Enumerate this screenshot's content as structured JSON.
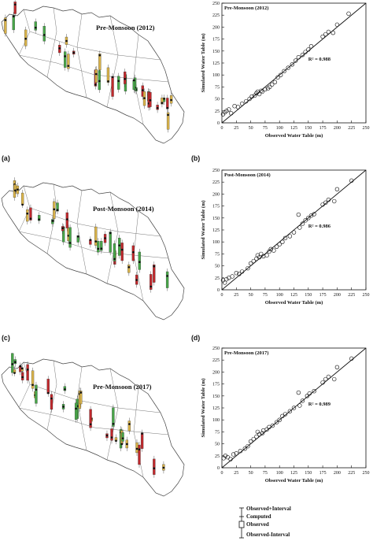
{
  "figure": {
    "panel_labels": [
      "(a)",
      "(b)",
      "(c)",
      "(d)"
    ],
    "maps": [
      {
        "title": "Pre-Monsoon (2012)"
      },
      {
        "title": "Post-Monsoon (2014)"
      },
      {
        "title": "Pre-Monsoon (2017)"
      }
    ],
    "legend": {
      "items": [
        "Observed+Interval",
        "Computed",
        "Observed",
        "Observed-Interval"
      ]
    },
    "colors": {
      "bar_red": "#c0282c",
      "bar_yellow": "#d9b34a",
      "bar_green": "#47a548",
      "fit_line": "#111111",
      "marker_stroke": "#111111"
    }
  },
  "chart_data": [
    {
      "type": "scatter",
      "title": "Pre-Monsoon (2012)",
      "xlabel": "Observed Water Table (m)",
      "ylabel": "Simulated Water Table (m)",
      "xlim": [
        0,
        250
      ],
      "ylim": [
        0,
        250
      ],
      "xticks": [
        0,
        25,
        50,
        75,
        100,
        125,
        150,
        175,
        200,
        225,
        250
      ],
      "yticks": [
        0,
        25,
        50,
        75,
        100,
        125,
        150,
        175,
        200,
        225,
        250
      ],
      "annotation": "R² = 0.988",
      "reference_line": "1:1",
      "grid": false,
      "x": [
        2,
        5,
        8,
        12,
        16,
        22,
        28,
        35,
        42,
        48,
        52,
        57,
        60,
        62,
        65,
        68,
        70,
        75,
        80,
        83,
        87,
        92,
        97,
        102,
        108,
        115,
        122,
        128,
        133,
        140,
        145,
        150,
        155,
        175,
        180,
        185,
        193,
        200,
        220
      ],
      "y": [
        18,
        22,
        25,
        28,
        20,
        35,
        33,
        40,
        45,
        50,
        55,
        57,
        62,
        65,
        60,
        67,
        65,
        70,
        72,
        75,
        80,
        85,
        95,
        100,
        108,
        115,
        122,
        130,
        137,
        142,
        148,
        153,
        160,
        180,
        185,
        190,
        188,
        205,
        228
      ]
    },
    {
      "type": "scatter",
      "title": "Post-Monsoon (2014)",
      "xlabel": "Observed Water Table (m)",
      "ylabel": "Simulated Water Table (m)",
      "xlim": [
        0,
        250
      ],
      "ylim": [
        0,
        250
      ],
      "xticks": [
        0,
        25,
        50,
        75,
        100,
        125,
        150,
        175,
        200,
        225,
        250
      ],
      "yticks": [
        0,
        25,
        50,
        75,
        100,
        125,
        150,
        175,
        200,
        225,
        250
      ],
      "annotation": "R² = 0.986",
      "reference_line": "1:1",
      "grid": false,
      "x": [
        2,
        5,
        8,
        12,
        18,
        25,
        30,
        35,
        45,
        50,
        55,
        60,
        62,
        65,
        68,
        72,
        78,
        82,
        85,
        90,
        95,
        100,
        105,
        110,
        118,
        125,
        133,
        135,
        140,
        145,
        150,
        155,
        160,
        175,
        180,
        185,
        195,
        200,
        225
      ],
      "y": [
        20,
        15,
        22,
        25,
        28,
        35,
        33,
        38,
        45,
        55,
        60,
        65,
        72,
        68,
        75,
        70,
        72,
        80,
        85,
        82,
        90,
        95,
        100,
        108,
        112,
        120,
        157,
        130,
        138,
        145,
        150,
        155,
        158,
        178,
        182,
        188,
        185,
        210,
        228
      ]
    },
    {
      "type": "scatter",
      "title": "Pre-Monsoon (2017)",
      "xlabel": "Observed Water Table (m)",
      "ylabel": "Simulated Water Table (m)",
      "xlim": [
        0,
        250
      ],
      "ylim": [
        0,
        250
      ],
      "xticks": [
        0,
        25,
        50,
        75,
        100,
        125,
        150,
        175,
        200,
        225,
        250
      ],
      "yticks": [
        0,
        25,
        50,
        75,
        100,
        125,
        150,
        175,
        200,
        225,
        250
      ],
      "annotation": "R² = 0.989",
      "reference_line": "1:1",
      "grid": false,
      "x": [
        3,
        6,
        10,
        15,
        20,
        25,
        32,
        40,
        45,
        50,
        55,
        60,
        62,
        65,
        70,
        72,
        78,
        82,
        88,
        95,
        100,
        105,
        110,
        118,
        125,
        133,
        135,
        140,
        148,
        152,
        160,
        175,
        180,
        185,
        195,
        200,
        225
      ],
      "y": [
        20,
        25,
        22,
        18,
        28,
        30,
        35,
        40,
        45,
        55,
        60,
        65,
        75,
        70,
        72,
        78,
        80,
        85,
        88,
        95,
        100,
        108,
        112,
        118,
        125,
        157,
        130,
        140,
        150,
        155,
        160,
        178,
        185,
        190,
        185,
        210,
        228
      ]
    }
  ]
}
